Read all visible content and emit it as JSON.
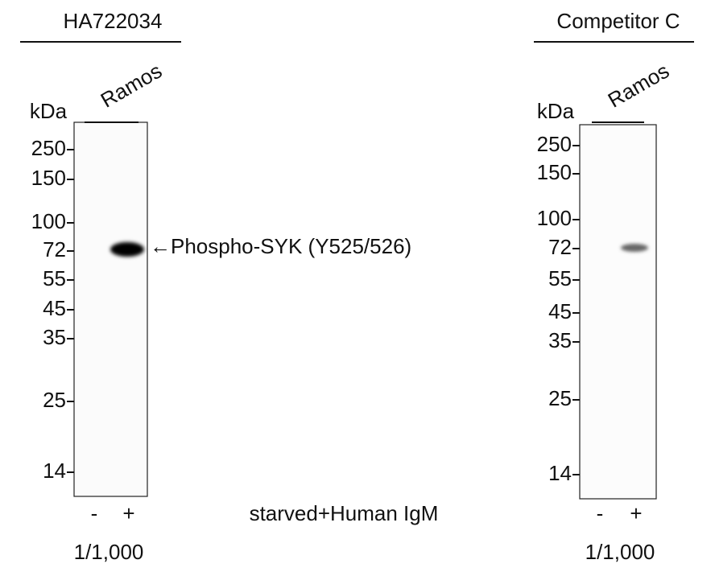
{
  "panels": [
    {
      "title": "HA722034",
      "sample": "Ramos",
      "unit": "kDa",
      "markers": [
        250,
        150,
        100,
        72,
        55,
        45,
        35,
        25,
        14
      ],
      "lanes": [
        "-",
        "+"
      ],
      "dilution": "1/1,000"
    },
    {
      "title": "Competitor C",
      "sample": "Ramos",
      "unit": "kDa",
      "markers": [
        250,
        150,
        100,
        72,
        55,
        45,
        35,
        25,
        14
      ],
      "lanes": [
        "-",
        "+"
      ],
      "dilution": "1/1,000"
    }
  ],
  "band_label": "←Phospho-SYK (Y525/526)",
  "treatment": "starved+Human IgM"
}
